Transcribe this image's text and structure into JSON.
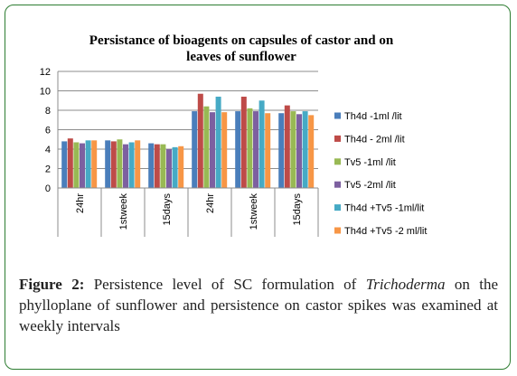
{
  "chart_data": {
    "type": "bar",
    "title_line1": "Persistance  of bioagents on capsules of castor and on",
    "title_line2": "leaves of sunflower",
    "categories": [
      "24hr",
      "1stweek",
      "15days",
      "24hr",
      "1stweek",
      "15days"
    ],
    "ylim": [
      0,
      12
    ],
    "yticks": [
      "0",
      "2",
      "4",
      "6",
      "8",
      "10",
      "12"
    ],
    "grid": true,
    "legend_position": "right",
    "series": [
      {
        "name": "Th4d -1ml /lit",
        "color": "#4a7ebb",
        "values": [
          4.8,
          4.9,
          4.6,
          7.9,
          7.9,
          7.7
        ]
      },
      {
        "name": "Th4d - 2ml /lit",
        "color": "#be4b48",
        "values": [
          5.1,
          4.8,
          4.5,
          9.7,
          9.4,
          8.5
        ]
      },
      {
        "name": "Tv5 -1ml /lit",
        "color": "#98b954",
        "values": [
          4.7,
          5.0,
          4.5,
          8.4,
          8.2,
          7.9
        ]
      },
      {
        "name": "Tv5 -2ml /lit",
        "color": "#7d60a0",
        "values": [
          4.6,
          4.5,
          4.0,
          7.8,
          7.9,
          7.6
        ]
      },
      {
        "name": "Th4d +Tv5 -1ml/lit",
        "color": "#46aac5",
        "values": [
          4.9,
          4.7,
          4.2,
          9.4,
          9.0,
          7.9
        ]
      },
      {
        "name": "Th4d +Tv5 -2 ml/lit",
        "color": "#f79646",
        "values": [
          4.9,
          4.9,
          4.3,
          7.8,
          7.7,
          7.5
        ]
      }
    ]
  },
  "caption": {
    "label": "Figure 2:",
    "text_before": " Persistence level of SC formulation of ",
    "italic": "Trichoderma",
    "text_after": " on the phylloplane of sunflower and persistence on castor spikes was examined at weekly intervals"
  }
}
